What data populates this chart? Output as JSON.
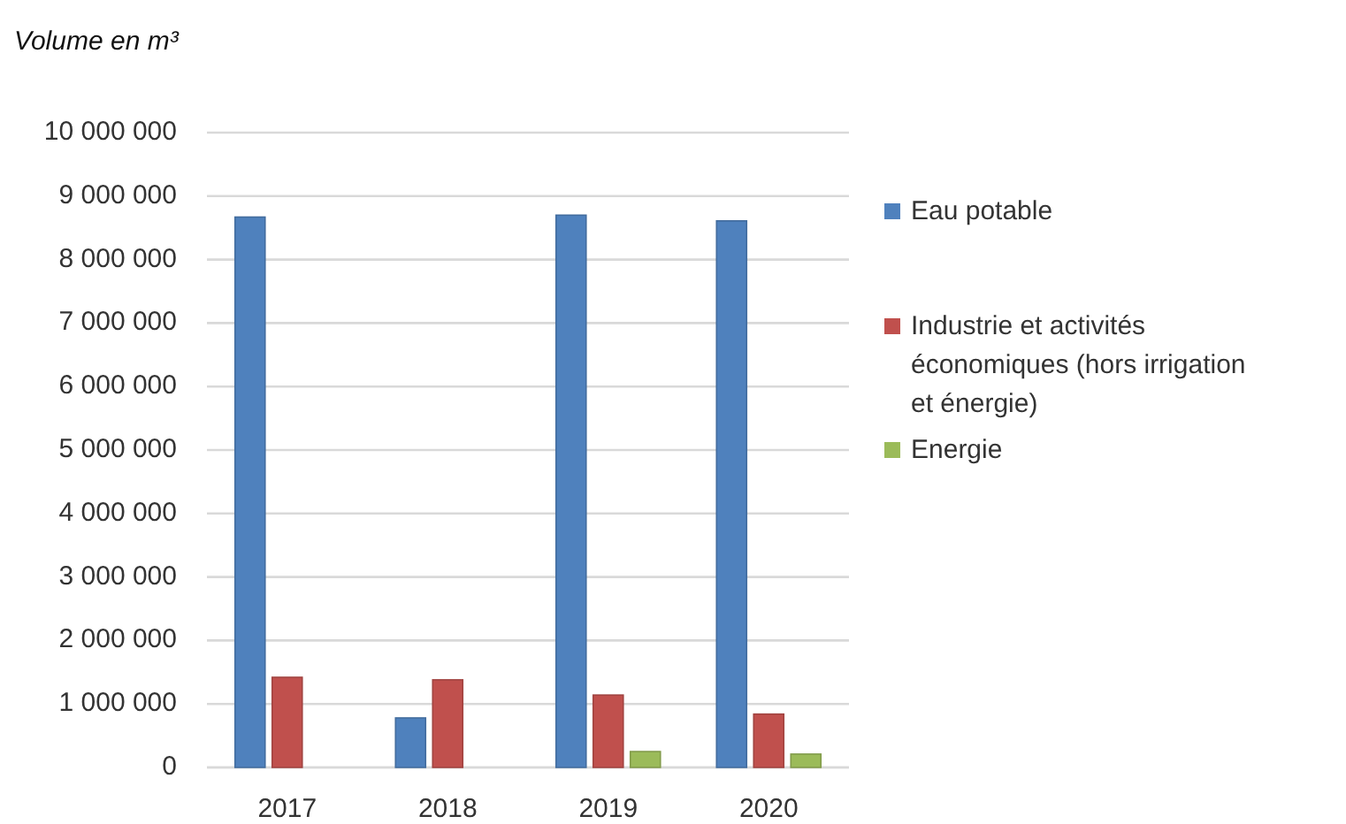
{
  "chart_data": {
    "type": "bar",
    "ylabel": "Volume en m³",
    "categories": [
      "2017",
      "2018",
      "2019",
      "2020"
    ],
    "series": [
      {
        "name": "Eau potable",
        "color": "#4f81bd",
        "values": [
          8670000,
          780000,
          8700000,
          8610000
        ]
      },
      {
        "name": "Industrie et activités économiques (hors irrigation et énergie)",
        "color": "#c0504d",
        "values": [
          1420000,
          1380000,
          1140000,
          840000
        ]
      },
      {
        "name": "Energie",
        "color": "#9bbb59",
        "values": [
          null,
          null,
          250000,
          210000
        ]
      }
    ],
    "ylim": [
      0,
      10000000
    ],
    "yticks": [
      {
        "value": 0,
        "label": "0"
      },
      {
        "value": 1000000,
        "label": "1 000 000"
      },
      {
        "value": 2000000,
        "label": "2 000 000"
      },
      {
        "value": 3000000,
        "label": "3 000 000"
      },
      {
        "value": 4000000,
        "label": "4 000 000"
      },
      {
        "value": 5000000,
        "label": "5 000 000"
      },
      {
        "value": 6000000,
        "label": "6 000 000"
      },
      {
        "value": 7000000,
        "label": "7 000 000"
      },
      {
        "value": 8000000,
        "label": "8 000 000"
      },
      {
        "value": 9000000,
        "label": "9 000 000"
      },
      {
        "value": 10000000,
        "label": "10 000 000"
      }
    ],
    "grid": "y",
    "legend": "right"
  }
}
